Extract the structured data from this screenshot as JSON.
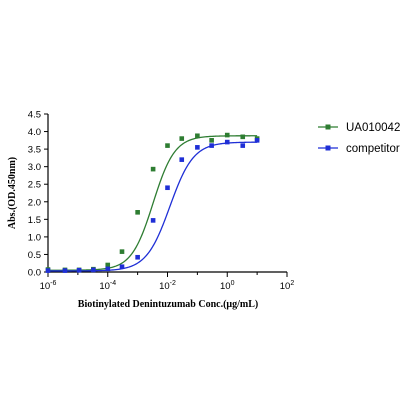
{
  "chart_data": {
    "type": "scatter",
    "xlabel": "Biotinylated Denintuzumab Conc.(μg/mL)",
    "ylabel": "Abs.(OD.450nm)",
    "xscale": "log",
    "xlim": [
      1e-06,
      100
    ],
    "ylim": [
      0,
      4.5
    ],
    "xticks": [
      {
        "label": "10",
        "exp": "-6",
        "value": 1e-06
      },
      {
        "label": "10",
        "exp": "-4",
        "value": 0.0001
      },
      {
        "label": "10",
        "exp": "-2",
        "value": 0.01
      },
      {
        "label": "10",
        "exp": "0",
        "value": 1
      },
      {
        "label": "10",
        "exp": "2",
        "value": 100
      }
    ],
    "yticks": [
      "0.0",
      "0.5",
      "1.0",
      "1.5",
      "2.0",
      "2.5",
      "3.0",
      "3.5",
      "4.0",
      "4.5"
    ],
    "legend_position": "top-right",
    "series": [
      {
        "name": "UA010042",
        "color": "#2e7d32",
        "marker": "square",
        "fit": {
          "bottom": 0.05,
          "top": 3.88,
          "ec50": 0.0033,
          "hill": 1.2
        },
        "x": [
          1e-06,
          3.7e-06,
          1.1e-05,
          3.3e-05,
          0.0001,
          0.0003,
          0.001,
          0.0033,
          0.01,
          0.03,
          0.1,
          0.3,
          1,
          3.3,
          10
        ],
        "y": [
          0.07,
          0.06,
          0.06,
          0.08,
          0.2,
          0.58,
          1.7,
          2.93,
          3.6,
          3.8,
          3.88,
          3.75,
          3.9,
          3.85,
          3.8
        ]
      },
      {
        "name": "competitor",
        "color": "#1f2fd6",
        "marker": "square",
        "fit": {
          "bottom": 0.03,
          "top": 3.7,
          "ec50": 0.012,
          "hill": 1.1
        },
        "x": [
          1e-06,
          3.7e-06,
          1.1e-05,
          3.3e-05,
          0.0001,
          0.0003,
          0.001,
          0.0033,
          0.01,
          0.03,
          0.1,
          0.3,
          1,
          3.3,
          10
        ],
        "y": [
          0.04,
          0.04,
          0.05,
          0.06,
          0.09,
          0.15,
          0.42,
          1.47,
          2.4,
          3.2,
          3.55,
          3.6,
          3.7,
          3.6,
          3.75
        ]
      }
    ]
  }
}
